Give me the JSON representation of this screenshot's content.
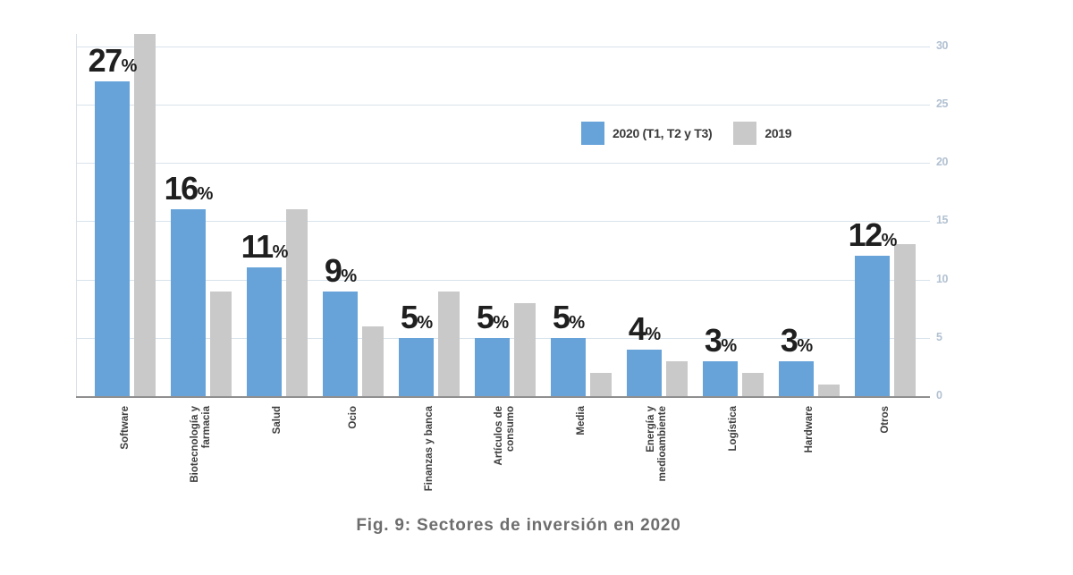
{
  "figure": {
    "caption": "Fig. 9: Sectores de inversión en 2020"
  },
  "chart_data": {
    "type": "bar",
    "title": "Fig. 9: Sectores de inversión en 2020",
    "categories": [
      "Software",
      "Biotecnología y\nfarmacia",
      "Salud",
      "Ocio",
      "Finanzas y banca",
      "Artículos de\nconsumo",
      "Media",
      "Energía y\nmedioambiente",
      "Logística",
      "Hardware",
      "Otros"
    ],
    "series": [
      {
        "name": "2020 (T1, T2 y T3)",
        "color": "#67a3d9",
        "values": [
          27,
          16,
          11,
          9,
          5,
          5,
          5,
          4,
          3,
          3,
          12
        ],
        "labels": [
          "27%",
          "16%",
          "11%",
          "9%",
          "5%",
          "5%",
          "5%",
          "4%",
          "3%",
          "3%",
          "12%"
        ]
      },
      {
        "name": "2019",
        "color": "#c9c9c9",
        "values": [
          31,
          9,
          16,
          6,
          9,
          8,
          2,
          3,
          2,
          1,
          13
        ]
      }
    ],
    "xlabel": "",
    "ylabel": "",
    "ylim": [
      0,
      31
    ],
    "yticks": [
      0,
      5,
      10,
      15,
      20,
      25,
      30
    ],
    "value_label_suffix": "%",
    "grid": "horizontal",
    "legend_position": "top-center",
    "axis_side": "right"
  }
}
